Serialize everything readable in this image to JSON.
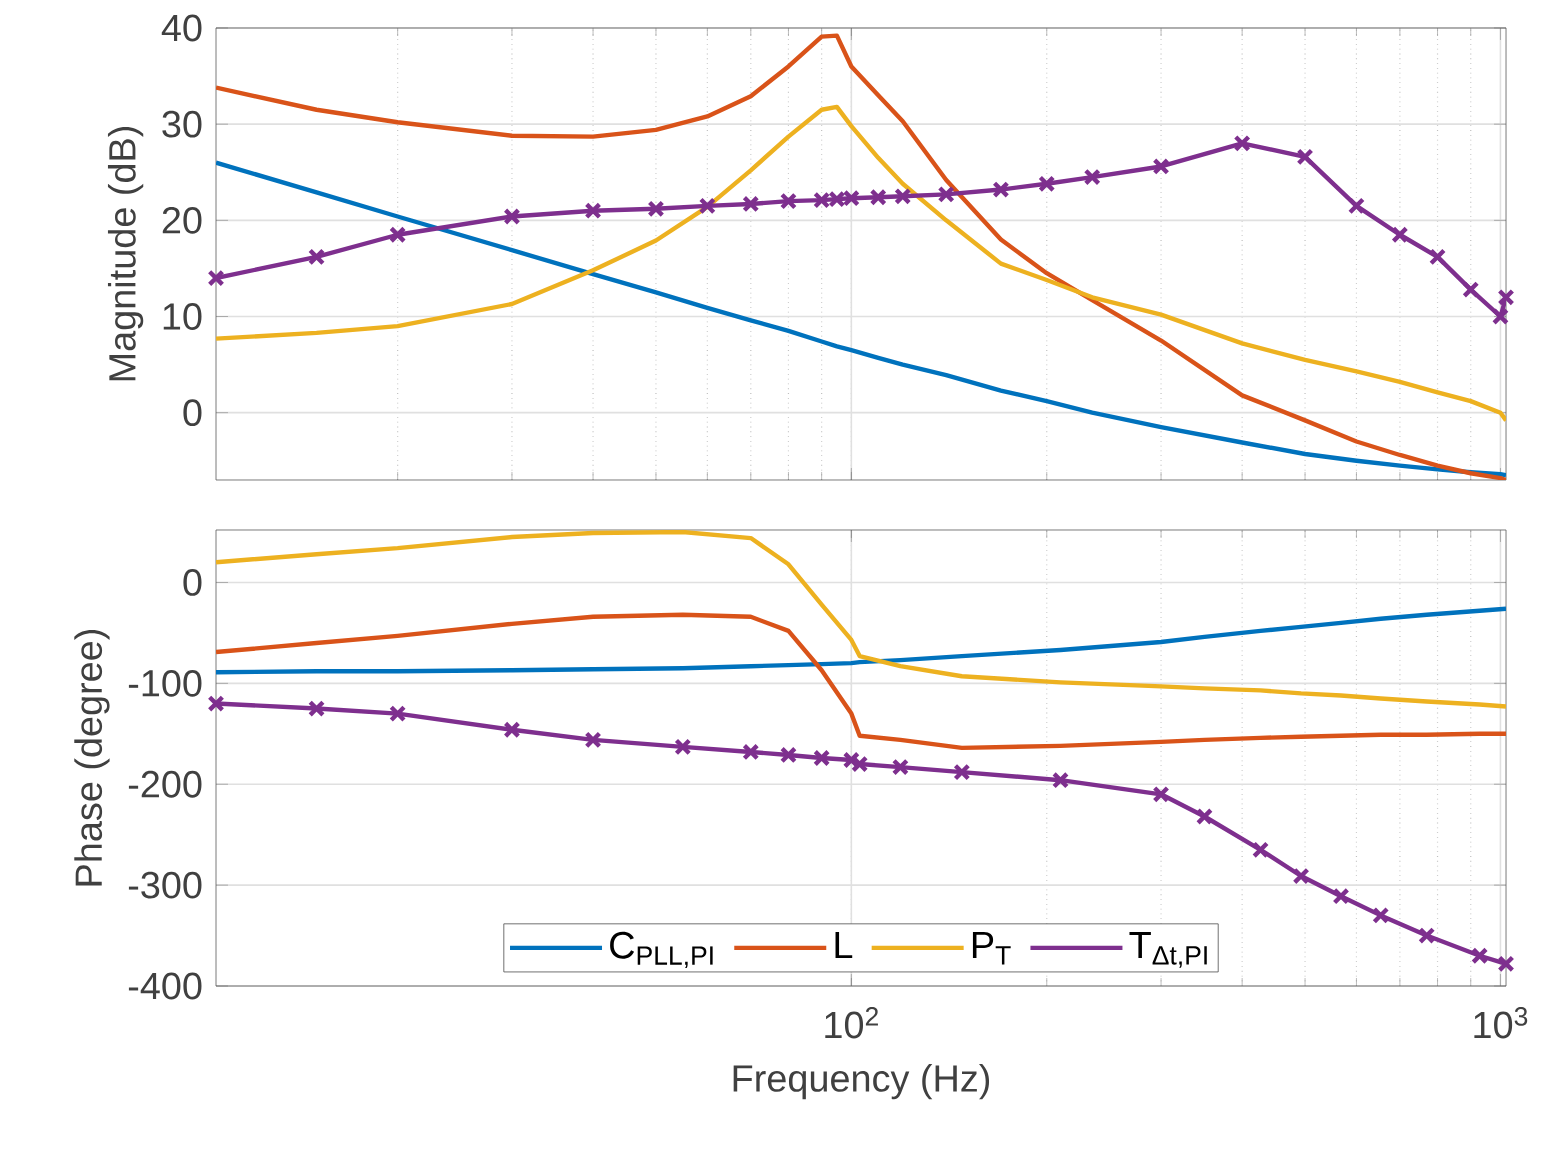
{
  "chart_data": [
    {
      "type": "line",
      "ylabel": "Magnitude (dB)",
      "log": "x",
      "grid": true,
      "legend": false,
      "tick_labels": "y",
      "x": [
        10.5,
        15,
        20,
        30,
        40,
        50,
        60,
        70,
        80,
        90,
        95,
        100,
        110,
        120,
        140,
        170,
        200,
        235,
        300,
        400,
        500,
        600,
        700,
        800,
        900,
        1000,
        1020
      ],
      "xlim": [
        10.5,
        1020
      ],
      "ylim": [
        -7,
        40
      ],
      "yticks": [
        0,
        10,
        20,
        30,
        40
      ],
      "series": [
        {
          "color": "#0072bd",
          "values": [
            26,
            22.9,
            20.4,
            16.9,
            14.4,
            12.5,
            10.9,
            9.6,
            8.5,
            7.4,
            6.9,
            6.5,
            5.7,
            5.0,
            3.9,
            2.3,
            1.2,
            0,
            -1.5,
            -3.1,
            -4.3,
            -5.0,
            -5.5,
            -5.9,
            -6.2,
            -6.4,
            -6.5
          ]
        },
        {
          "color": "#d95319",
          "values": [
            33.8,
            31.5,
            30.2,
            28.8,
            28.7,
            29.4,
            30.8,
            32.9,
            36,
            39.1,
            39.2,
            36,
            33,
            30.3,
            24.2,
            18,
            14.5,
            11.7,
            7.5,
            1.8,
            -0.8,
            -3,
            -4.4,
            -5.5,
            -6.3,
            -6.8,
            -7
          ]
        },
        {
          "color": "#edb120",
          "values": [
            7.7,
            8.3,
            9,
            11.3,
            14.8,
            17.9,
            21.4,
            25.2,
            28.7,
            31.5,
            31.8,
            29.8,
            26.5,
            23.8,
            20,
            15.5,
            13.8,
            12,
            10.2,
            7.2,
            5.5,
            4.3,
            3.2,
            2.1,
            1.2,
            0,
            -0.8
          ]
        },
        {
          "color": "#7e2f8e",
          "marker": "cross",
          "values": [
            14,
            16.2,
            18.5,
            20.4,
            21,
            21.2,
            21.5,
            21.7,
            22,
            22.1,
            22.2,
            22.3,
            22.4,
            22.5,
            22.7,
            23.2,
            23.8,
            24.5,
            25.6,
            28,
            26.6,
            21.5,
            18.5,
            16.2,
            12.8,
            10,
            12
          ]
        }
      ]
    },
    {
      "type": "line",
      "xlabel": "Frequency (Hz)",
      "ylabel": "Phase (degree)",
      "log": "x",
      "grid": true,
      "legend": "bottom",
      "x": [
        10.5,
        15,
        20,
        30,
        40,
        55,
        70,
        80,
        90,
        100,
        103,
        119,
        148,
        210,
        300,
        350,
        427,
        493,
        568,
        654,
        770,
        929,
        1020
      ],
      "xlim": [
        10.5,
        1020
      ],
      "xticks": [
        {
          "value": 100,
          "label": "10$^{2}$"
        },
        {
          "value": 1000,
          "label": "10$^{3}$"
        }
      ],
      "ylim": [
        -400,
        52
      ],
      "yticks": [
        -400,
        -300,
        -200,
        -100,
        0
      ],
      "series": [
        {
          "name": "C$_{PLL,PI}$",
          "color": "#0072bd",
          "values": [
            -89,
            -88,
            -88,
            -87,
            -86,
            -85,
            -83,
            -82,
            -81,
            -80,
            -79,
            -77,
            -73,
            -67,
            -59,
            -54,
            -48,
            -44,
            -40,
            -36,
            -32,
            -28,
            -26
          ]
        },
        {
          "name": "L",
          "color": "#d95319",
          "values": [
            -69,
            -60,
            -53,
            -41,
            -34,
            -32,
            -34,
            -48,
            -87,
            -130,
            -152,
            -156,
            -164,
            -162,
            -158,
            -156,
            -154,
            -153,
            -152,
            -151,
            -151,
            -150,
            -150
          ]
        },
        {
          "name": "P$_{T}$",
          "color": "#edb120",
          "values": [
            20,
            28,
            34,
            45,
            49,
            50,
            44,
            18,
            -22,
            -57,
            -73,
            -83,
            -93,
            -99,
            -103,
            -105,
            -107,
            -110,
            -112,
            -115,
            -118,
            -121,
            -123
          ]
        },
        {
          "name": "T$_{Δt,PI}$",
          "color": "#7e2f8e",
          "marker": "cross",
          "values": [
            -120,
            -125,
            -130,
            -146,
            -156,
            -163,
            -168,
            -171,
            -174,
            -176,
            -180,
            -183,
            -188,
            -196,
            -210,
            -232,
            -265,
            -291,
            -311,
            -330,
            -350,
            -370,
            -378
          ]
        }
      ]
    }
  ]
}
